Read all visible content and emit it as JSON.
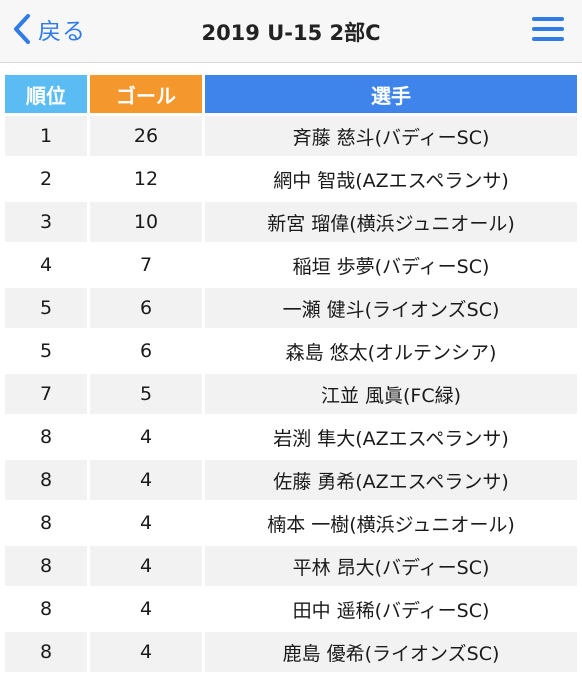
{
  "nav": {
    "back_label": "戻る",
    "title": "2019 U-15 2部C"
  },
  "table": {
    "headers": {
      "rank": "順位",
      "goal": "ゴール",
      "player": "選手"
    },
    "rows": [
      {
        "rank": "1",
        "goal": "26",
        "player": "斉藤 慈斗(バディーSC)"
      },
      {
        "rank": "2",
        "goal": "12",
        "player": "網中 智哉(AZエスペランサ)"
      },
      {
        "rank": "3",
        "goal": "10",
        "player": "新宮 瑠偉(横浜ジュニオール)"
      },
      {
        "rank": "4",
        "goal": "7",
        "player": "稲垣 歩夢(バディーSC)"
      },
      {
        "rank": "5",
        "goal": "6",
        "player": "一瀬 健斗(ライオンズSC)"
      },
      {
        "rank": "5",
        "goal": "6",
        "player": "森島 悠太(オルテンシア)"
      },
      {
        "rank": "7",
        "goal": "5",
        "player": "江並 風眞(FC緑)"
      },
      {
        "rank": "8",
        "goal": "4",
        "player": "岩渕 隼大(AZエスペランサ)"
      },
      {
        "rank": "8",
        "goal": "4",
        "player": "佐藤 勇希(AZエスペランサ)"
      },
      {
        "rank": "8",
        "goal": "4",
        "player": "楠本 一樹(横浜ジュニオール)"
      },
      {
        "rank": "8",
        "goal": "4",
        "player": "平林 昂大(バディーSC)"
      },
      {
        "rank": "8",
        "goal": "4",
        "player": "田中 遥稀(バディーSC)"
      },
      {
        "rank": "8",
        "goal": "4",
        "player": "鹿島 優希(ライオンズSC)"
      }
    ]
  },
  "colors": {
    "accent": "#2f7be8",
    "rank_header": "#5bbcf4",
    "goal_header": "#f4972c",
    "player_header": "#3f84eb"
  },
  "icons": {
    "back": "chevron-left-icon",
    "menu": "hamburger-menu-icon"
  }
}
